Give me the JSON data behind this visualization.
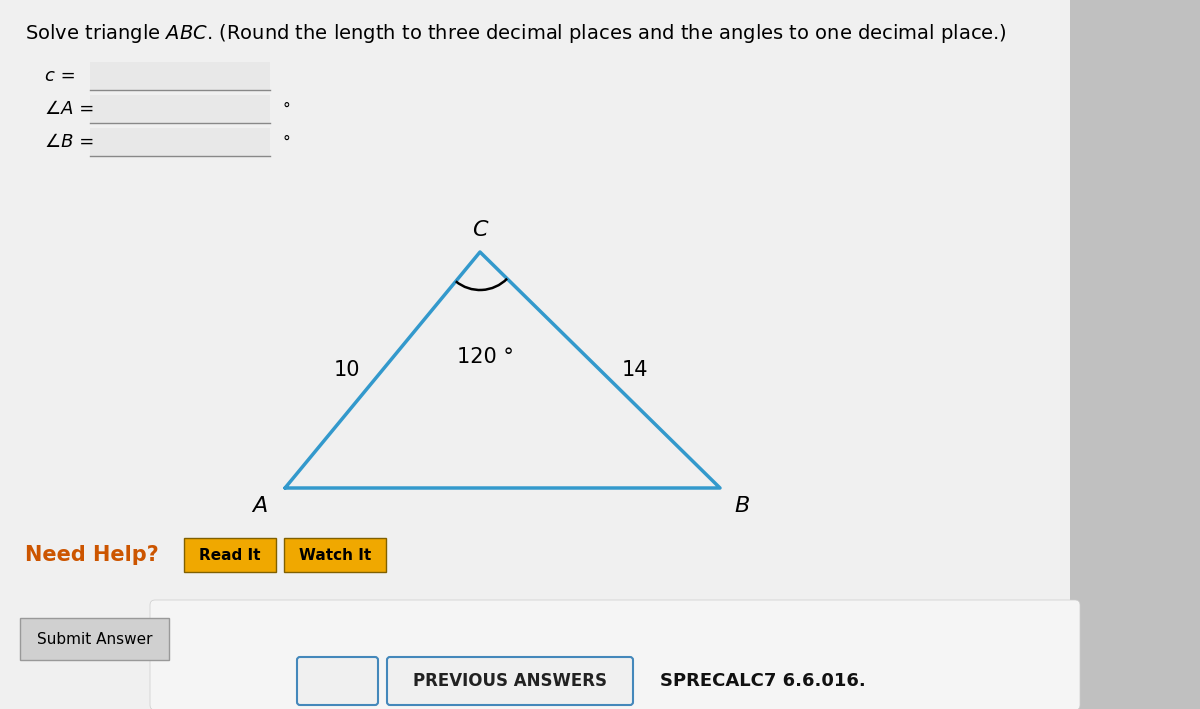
{
  "bg_color": "#e0e0e0",
  "bg_color_top": "#f0f0f0",
  "title_fontsize": 14,
  "form_labels": [
    "c =",
    "∠A =",
    "∠B ="
  ],
  "form_degree_symbols": [
    false,
    true,
    true
  ],
  "triangle_color": "#3399cc",
  "triangle_linewidth": 2.5,
  "angle_arc_color": "#000000",
  "vertex_A": [
    0.295,
    0.415
  ],
  "vertex_B": [
    0.685,
    0.415
  ],
  "vertex_C": [
    0.465,
    0.635
  ],
  "label_A": "A",
  "label_B": "B",
  "label_C": "C",
  "side_AC_label": "10",
  "side_BC_label": "14",
  "angle_C_label": "120 °",
  "need_help_color": "#cc5500",
  "btn_read_color": "#f0a800",
  "btn_watch_color": "#f0a800",
  "btn_submit_color": "#d0d0d0",
  "bottom_text": "PREVIOUS ANSWERS",
  "sprecalc_text": "SPRECALC7 6.6.016.",
  "input_box_color": "#e8e8e8",
  "input_box_border": "#aaaaaa",
  "input_box_line_color": "#888888"
}
